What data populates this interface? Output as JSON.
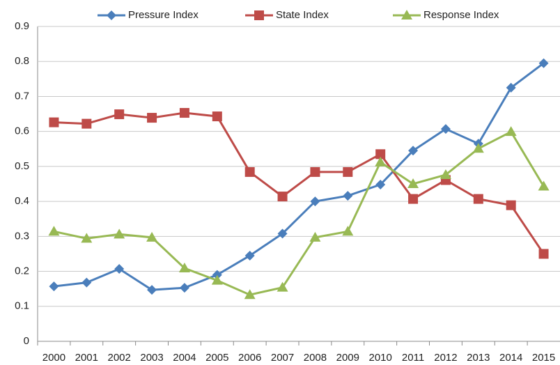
{
  "chart_data": {
    "type": "line",
    "categories": [
      "2000",
      "2001",
      "2002",
      "2003",
      "2004",
      "2005",
      "2006",
      "2007",
      "2008",
      "2009",
      "2010",
      "2011",
      "2012",
      "2013",
      "2014",
      "2015"
    ],
    "series": [
      {
        "name": "Pressure Index",
        "color": "#4a7ebb",
        "marker": "diamond",
        "values": [
          0.157,
          0.168,
          0.207,
          0.147,
          0.153,
          0.19,
          0.245,
          0.308,
          0.4,
          0.416,
          0.448,
          0.545,
          0.607,
          0.565,
          0.725,
          0.795
        ]
      },
      {
        "name": "State Index",
        "color": "#be4b48",
        "marker": "square",
        "values": [
          0.626,
          0.622,
          0.649,
          0.639,
          0.653,
          0.643,
          0.484,
          0.414,
          0.484,
          0.484,
          0.535,
          0.407,
          0.461,
          0.407,
          0.389,
          0.25
        ]
      },
      {
        "name": "Response Index",
        "color": "#98b954",
        "marker": "triangle",
        "values": [
          0.314,
          0.294,
          0.306,
          0.297,
          0.209,
          0.174,
          0.133,
          0.154,
          0.297,
          0.314,
          0.512,
          0.45,
          0.476,
          0.551,
          0.599,
          0.443
        ]
      }
    ],
    "ylim": [
      0,
      0.9
    ],
    "yticks": [
      0,
      0.1,
      0.2,
      0.3,
      0.4,
      0.5,
      0.6,
      0.7,
      0.8,
      0.9
    ],
    "grid": true,
    "legend": "top"
  }
}
